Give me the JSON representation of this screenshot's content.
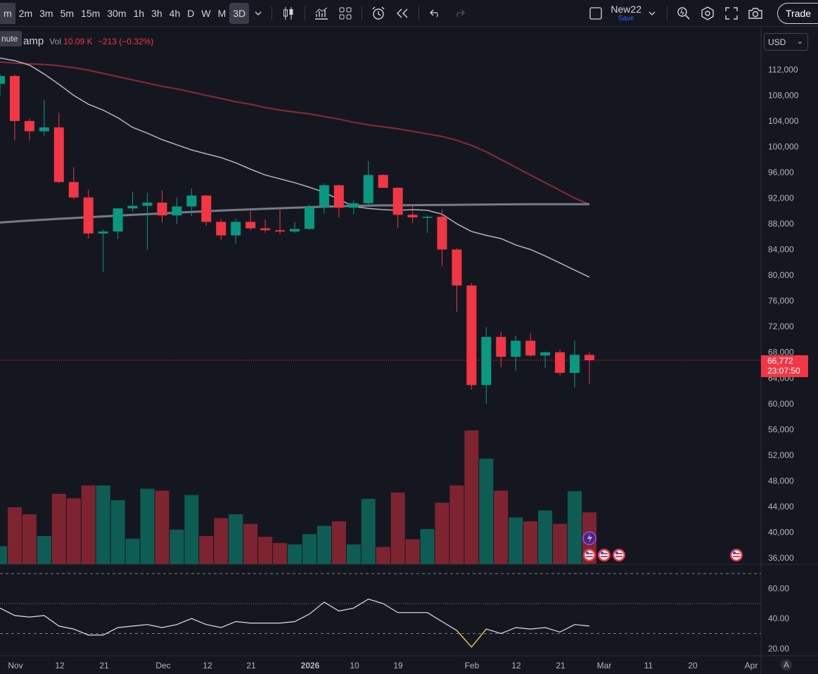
{
  "toolbar": {
    "timeframes": [
      "m",
      "2m",
      "3m",
      "5m",
      "15m",
      "30m",
      "1h",
      "3h",
      "4h",
      "D",
      "W",
      "M",
      "3D"
    ],
    "active_timeframe": "3D",
    "layout_name": "New22",
    "save_label": "Save",
    "trade_label": "Trade"
  },
  "legend": {
    "tooltip": "nute",
    "symbol_fragment": "amp",
    "vol_label": "Vol",
    "vol_value": "10.09 K",
    "vol_change": "−213 (−0.32%)"
  },
  "currency": "USD",
  "price_axis": {
    "labels": [
      "112,000",
      "108,000",
      "104,000",
      "100,000",
      "96,000",
      "92,000",
      "88,000",
      "84,000",
      "80,000",
      "76,000",
      "72,000",
      "68,000",
      "64,000",
      "60,000",
      "56,000",
      "52,000",
      "48,000",
      "44,000",
      "40,000",
      "36,000"
    ]
  },
  "last_price": {
    "price": "66,772",
    "countdown": "23:07:50"
  },
  "oscillator_axis": {
    "labels": [
      "60.00",
      "40.00",
      "20.00"
    ]
  },
  "time_axis": {
    "labels": [
      "Nov",
      "12",
      "21",
      "Dec",
      "12",
      "21",
      "2026",
      "10",
      "19",
      "Feb",
      "12",
      "21",
      "Mar",
      "11",
      "20",
      "Apr"
    ],
    "bold": [
      "2026"
    ],
    "auto_scale": "A"
  },
  "chart_data": {
    "type": "candlestick",
    "interval": "3D",
    "candles": [
      {
        "o": 109800,
        "h": 111300,
        "l": 107800,
        "c": 111000
      },
      {
        "o": 111000,
        "h": 111200,
        "l": 101000,
        "c": 104000
      },
      {
        "o": 104000,
        "h": 104400,
        "l": 101000,
        "c": 102400
      },
      {
        "o": 102400,
        "h": 107300,
        "l": 101700,
        "c": 103000
      },
      {
        "o": 103000,
        "h": 105300,
        "l": 94300,
        "c": 94500
      },
      {
        "o": 94500,
        "h": 96800,
        "l": 91800,
        "c": 92100
      },
      {
        "o": 92100,
        "h": 93300,
        "l": 85700,
        "c": 86500
      },
      {
        "o": 86500,
        "h": 87100,
        "l": 80500,
        "c": 86800
      },
      {
        "o": 86800,
        "h": 90400,
        "l": 85600,
        "c": 90400
      },
      {
        "o": 90400,
        "h": 93000,
        "l": 89900,
        "c": 90800
      },
      {
        "o": 90800,
        "h": 92800,
        "l": 84000,
        "c": 91300
      },
      {
        "o": 91300,
        "h": 93200,
        "l": 88200,
        "c": 89300
      },
      {
        "o": 89300,
        "h": 92100,
        "l": 88000,
        "c": 90700
      },
      {
        "o": 90700,
        "h": 93500,
        "l": 89200,
        "c": 92400
      },
      {
        "o": 92400,
        "h": 92500,
        "l": 87700,
        "c": 88300
      },
      {
        "o": 88300,
        "h": 88700,
        "l": 85500,
        "c": 86200
      },
      {
        "o": 86200,
        "h": 88800,
        "l": 84900,
        "c": 88300
      },
      {
        "o": 88300,
        "h": 90000,
        "l": 87000,
        "c": 87300
      },
      {
        "o": 87300,
        "h": 88700,
        "l": 86600,
        "c": 87000
      },
      {
        "o": 87000,
        "h": 90200,
        "l": 86400,
        "c": 86800
      },
      {
        "o": 86800,
        "h": 88300,
        "l": 86600,
        "c": 87200
      },
      {
        "o": 87200,
        "h": 91000,
        "l": 87100,
        "c": 90600
      },
      {
        "o": 90600,
        "h": 94300,
        "l": 89600,
        "c": 94000
      },
      {
        "o": 94000,
        "h": 94100,
        "l": 89000,
        "c": 90500
      },
      {
        "o": 90500,
        "h": 91700,
        "l": 89500,
        "c": 91200
      },
      {
        "o": 91200,
        "h": 97800,
        "l": 91000,
        "c": 95600
      },
      {
        "o": 95600,
        "h": 95700,
        "l": 93600,
        "c": 93600
      },
      {
        "o": 93600,
        "h": 93700,
        "l": 87400,
        "c": 89400
      },
      {
        "o": 89400,
        "h": 91000,
        "l": 88100,
        "c": 89000
      },
      {
        "o": 89000,
        "h": 89300,
        "l": 86600,
        "c": 89100
      },
      {
        "o": 89100,
        "h": 90200,
        "l": 81400,
        "c": 84000
      },
      {
        "o": 84000,
        "h": 84200,
        "l": 74300,
        "c": 78400
      },
      {
        "o": 78400,
        "h": 78800,
        "l": 62200,
        "c": 62900
      },
      {
        "o": 62900,
        "h": 71900,
        "l": 60000,
        "c": 70400
      },
      {
        "o": 70400,
        "h": 71200,
        "l": 65700,
        "c": 67300
      },
      {
        "o": 67300,
        "h": 70600,
        "l": 65100,
        "c": 69800
      },
      {
        "o": 69800,
        "h": 71000,
        "l": 67300,
        "c": 67500
      },
      {
        "o": 67500,
        "h": 68100,
        "l": 65600,
        "c": 68000
      },
      {
        "o": 68000,
        "h": 68400,
        "l": 64400,
        "c": 64800
      },
      {
        "o": 64800,
        "h": 69800,
        "l": 62500,
        "c": 67600
      },
      {
        "o": 67600,
        "h": 68000,
        "l": 63100,
        "c": 66772
      }
    ],
    "volume": [
      {
        "v": 2.8,
        "up": true
      },
      {
        "v": 8.9,
        "up": false
      },
      {
        "v": 7.8,
        "up": false
      },
      {
        "v": 4.4,
        "up": true
      },
      {
        "v": 11.0,
        "up": false
      },
      {
        "v": 10.3,
        "up": false
      },
      {
        "v": 12.3,
        "up": false
      },
      {
        "v": 12.3,
        "up": true
      },
      {
        "v": 10.0,
        "up": true
      },
      {
        "v": 4.0,
        "up": true
      },
      {
        "v": 11.8,
        "up": true
      },
      {
        "v": 11.5,
        "up": false
      },
      {
        "v": 5.4,
        "up": true
      },
      {
        "v": 10.8,
        "up": true
      },
      {
        "v": 4.4,
        "up": false
      },
      {
        "v": 7.2,
        "up": false
      },
      {
        "v": 7.8,
        "up": true
      },
      {
        "v": 6.3,
        "up": false
      },
      {
        "v": 4.3,
        "up": false
      },
      {
        "v": 3.3,
        "up": false
      },
      {
        "v": 3.1,
        "up": true
      },
      {
        "v": 4.7,
        "up": true
      },
      {
        "v": 6.0,
        "up": true
      },
      {
        "v": 6.7,
        "up": false
      },
      {
        "v": 3.1,
        "up": true
      },
      {
        "v": 10.2,
        "up": true
      },
      {
        "v": 2.7,
        "up": false
      },
      {
        "v": 11.2,
        "up": false
      },
      {
        "v": 3.9,
        "up": false
      },
      {
        "v": 5.5,
        "up": true
      },
      {
        "v": 9.6,
        "up": false
      },
      {
        "v": 12.3,
        "up": false
      },
      {
        "v": 20.9,
        "up": false
      },
      {
        "v": 16.5,
        "up": true
      },
      {
        "v": 11.5,
        "up": false
      },
      {
        "v": 7.3,
        "up": true
      },
      {
        "v": 6.7,
        "up": false
      },
      {
        "v": 8.4,
        "up": true
      },
      {
        "v": 6.3,
        "up": false
      },
      {
        "v": 11.4,
        "up": true
      },
      {
        "v": 8.1,
        "up": false
      }
    ],
    "ma_short": [
      113800,
      113400,
      112700,
      111300,
      109700,
      108000,
      106600,
      105700,
      104500,
      103000,
      102100,
      101100,
      100300,
      99500,
      98900,
      98300,
      97500,
      96500,
      95600,
      95000,
      94400,
      93700,
      92900,
      91800,
      90700,
      90400,
      90200,
      90100,
      90200,
      90100,
      89500,
      88000,
      86800,
      86200,
      85700,
      84700,
      84000,
      83000,
      81900,
      80800,
      79700
    ],
    "ma_long": [
      113200,
      113000,
      112900,
      112800,
      112600,
      112300,
      111900,
      111400,
      110900,
      110400,
      109900,
      109400,
      109000,
      108500,
      108000,
      107500,
      107000,
      106600,
      106100,
      105700,
      105400,
      105100,
      104700,
      104300,
      103800,
      103400,
      103100,
      102800,
      102400,
      102000,
      101600,
      101000,
      100200,
      99200,
      98000,
      96800,
      95600,
      94400,
      93200,
      92000,
      91000
    ],
    "ma_flat": [
      88200,
      88350,
      88500,
      88650,
      88780,
      88900,
      89020,
      89150,
      89270,
      89390,
      89500,
      89610,
      89730,
      89850,
      89960,
      90060,
      90160,
      90250,
      90330,
      90420,
      90500,
      90580,
      90660,
      90730,
      90790,
      90840,
      90870,
      90890,
      90900,
      90920,
      90940,
      90960,
      90980,
      91000,
      91020,
      91030,
      91040,
      91040,
      91050,
      91050,
      91050
    ],
    "oscillator": [
      47,
      42,
      41,
      42,
      35,
      33,
      29,
      29,
      34,
      35,
      36,
      34,
      36,
      40,
      36,
      34,
      38,
      37,
      37,
      37,
      38,
      43,
      51,
      45,
      47,
      53,
      50,
      44,
      44,
      44,
      38,
      32,
      21,
      33,
      30,
      34,
      33,
      34,
      31,
      36,
      35
    ],
    "oscillator_levels": [
      70,
      50,
      30
    ],
    "price_range": [
      36000,
      112000
    ],
    "colors": {
      "up": "#089981",
      "down": "#f23645",
      "up_volume": "#0e5d54",
      "down_volume": "#7e2430",
      "ma_short": "#b2b5be",
      "ma_long": "#8b2a35",
      "ma_flat": "#787b86"
    }
  }
}
